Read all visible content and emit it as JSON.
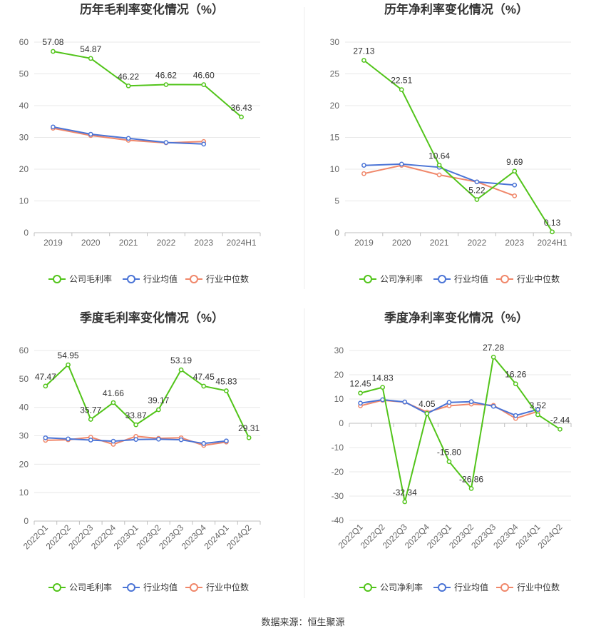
{
  "colors": {
    "company": "#52c41a",
    "mean": "#4b74d6",
    "median": "#f0876a",
    "grid": "#e8e8e8",
    "axis": "#bfbfbf",
    "divider": "#eeeeee"
  },
  "legend_labels": {
    "gross": [
      "公司毛利率",
      "行业均值",
      "行业中位数"
    ],
    "net": [
      "公司净利率",
      "行业均值",
      "行业中位数"
    ]
  },
  "source": "数据来源：恒生聚源",
  "chart_data": [
    {
      "id": "annual-gross",
      "type": "line",
      "title": "历年毛利率变化情况（%）",
      "categories": [
        "2019",
        "2020",
        "2021",
        "2022",
        "2023",
        "2024H1"
      ],
      "yticks": [
        "0",
        "10",
        "20",
        "30",
        "40",
        "50",
        "60"
      ],
      "ylim": [
        0,
        60
      ],
      "legend_key": "gross",
      "series": [
        {
          "name": "公司毛利率",
          "values": [
            57.08,
            54.87,
            46.22,
            46.62,
            46.6,
            36.43
          ],
          "labels": [
            "57.08",
            "54.87",
            "46.22",
            "46.62",
            "46.60",
            "36.43"
          ]
        },
        {
          "name": "行业均值",
          "values": [
            33.3,
            31.0,
            29.7,
            28.4,
            27.9,
            null
          ]
        },
        {
          "name": "行业中位数",
          "values": [
            32.9,
            30.6,
            29.1,
            28.3,
            28.7,
            null
          ]
        }
      ]
    },
    {
      "id": "annual-net",
      "type": "line",
      "title": "历年净利率变化情况（%）",
      "categories": [
        "2019",
        "2020",
        "2021",
        "2022",
        "2023",
        "2024H1"
      ],
      "yticks": [
        "0",
        "5",
        "10",
        "15",
        "20",
        "25",
        "30"
      ],
      "ylim": [
        0,
        30
      ],
      "legend_key": "net",
      "series": [
        {
          "name": "公司净利率",
          "values": [
            27.13,
            22.51,
            10.64,
            5.22,
            9.69,
            0.13
          ],
          "labels": [
            "27.13",
            "22.51",
            "10.64",
            "5.22",
            "9.69",
            "0.13"
          ]
        },
        {
          "name": "行业均值",
          "values": [
            10.6,
            10.8,
            10.3,
            8.0,
            7.5,
            null
          ]
        },
        {
          "name": "行业中位数",
          "values": [
            9.3,
            10.6,
            9.1,
            8.0,
            5.8,
            null
          ]
        }
      ]
    },
    {
      "id": "quarterly-gross",
      "type": "line",
      "title": "季度毛利率变化情况（%）",
      "categories": [
        "2022Q1",
        "2022Q2",
        "2022Q3",
        "2022Q4",
        "2023Q1",
        "2023Q2",
        "2023Q3",
        "2023Q4",
        "2024Q1",
        "2024Q2"
      ],
      "yticks": [
        "0",
        "10",
        "20",
        "30",
        "40",
        "50",
        "60"
      ],
      "ylim": [
        0,
        60
      ],
      "legend_key": "gross",
      "series": [
        {
          "name": "公司毛利率",
          "values": [
            47.47,
            54.95,
            35.77,
            41.66,
            33.87,
            39.17,
            53.19,
            47.45,
            45.83,
            29.31
          ],
          "labels": [
            "47.47",
            "54.95",
            "35.77",
            "41.66",
            "33.87",
            "39.17",
            "53.19",
            "47.45",
            "45.83",
            "29.31"
          ]
        },
        {
          "name": "行业均值",
          "values": [
            29.3,
            28.9,
            28.5,
            28.1,
            28.7,
            28.8,
            28.6,
            27.3,
            28.2,
            null
          ]
        },
        {
          "name": "行业中位数",
          "values": [
            28.4,
            28.6,
            29.5,
            27.0,
            29.8,
            29.1,
            29.3,
            26.6,
            27.8,
            null
          ]
        }
      ]
    },
    {
      "id": "quarterly-net",
      "type": "line",
      "title": "季度净利率变化情况（%）",
      "categories": [
        "2022Q1",
        "2022Q2",
        "2022Q3",
        "2022Q4",
        "2023Q1",
        "2023Q2",
        "2023Q3",
        "2023Q4",
        "2024Q1",
        "2024Q2"
      ],
      "yticks": [
        "-40",
        "-30",
        "-20",
        "-10",
        "0",
        "10",
        "20",
        "30"
      ],
      "ylim": [
        -40,
        30
      ],
      "legend_key": "net",
      "series": [
        {
          "name": "公司净利率",
          "values": [
            12.45,
            14.83,
            -32.34,
            4.05,
            -15.8,
            -26.86,
            27.28,
            16.26,
            3.52,
            -2.44
          ],
          "labels": [
            "12.45",
            "14.83",
            "-32.34",
            "4.05",
            "-15.80",
            "-26.86",
            "27.28",
            "16.26",
            "3.52",
            "-2.44"
          ]
        },
        {
          "name": "行业均值",
          "values": [
            8.3,
            9.7,
            8.8,
            4.0,
            8.6,
            8.9,
            7.0,
            3.2,
            5.7,
            null
          ]
        },
        {
          "name": "行业中位数",
          "values": [
            7.2,
            9.5,
            8.7,
            4.6,
            7.2,
            7.9,
            7.4,
            2.0,
            4.9,
            null
          ]
        }
      ]
    }
  ]
}
